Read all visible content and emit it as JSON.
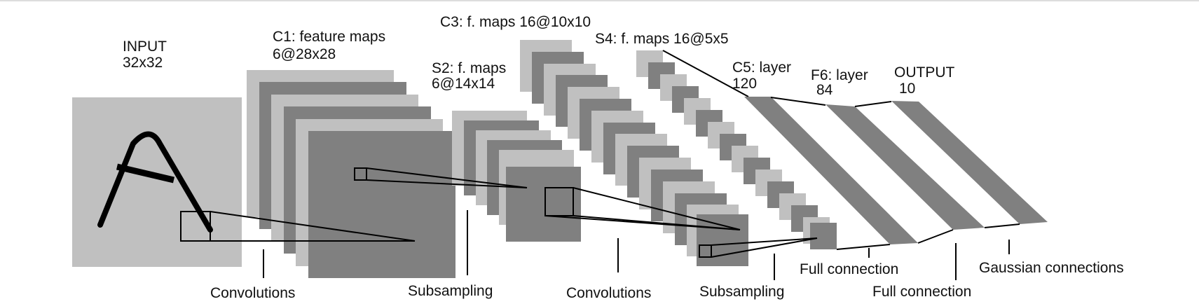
{
  "colors": {
    "light": "#c0c0c0",
    "dark": "#808080",
    "stroke": "#000000",
    "background": "#ffffff"
  },
  "stages": {
    "input": {
      "title": "INPUT",
      "size": "32x32",
      "glyph": "A"
    },
    "c1": {
      "title": "C1: feature maps",
      "size": "6@28x28"
    },
    "s2": {
      "title": "S2: f. maps",
      "size": "6@14x14"
    },
    "c3": {
      "title": "C3: f. maps 16@10x10"
    },
    "s4": {
      "title": "S4: f. maps 16@5x5"
    },
    "c5": {
      "title": "C5: layer",
      "size": "120"
    },
    "f6": {
      "title": "F6: layer",
      "size": "84"
    },
    "output": {
      "title": "OUTPUT",
      "size": "10"
    }
  },
  "operations": {
    "conv1": "Convolutions",
    "sub1": "Subsampling",
    "conv2": "Convolutions",
    "sub2": "Subsampling",
    "full1": "Full connection",
    "full2": "Full connection",
    "gauss": "Gaussian connections"
  }
}
